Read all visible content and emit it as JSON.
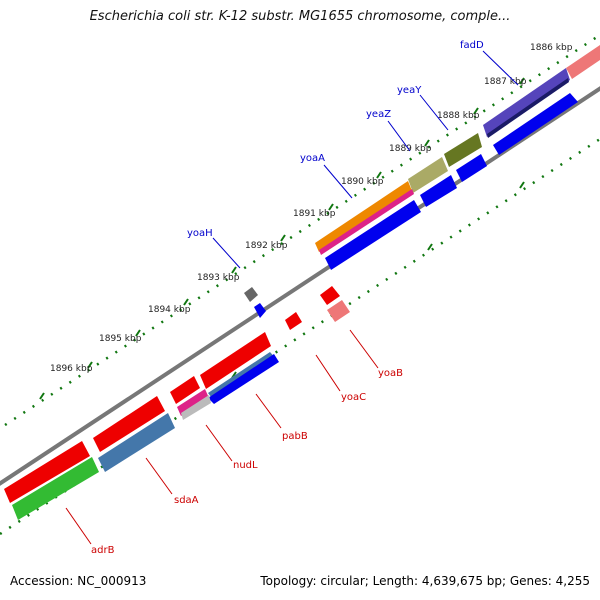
{
  "title": "Escherichia coli str. K-12 substr. MG1655 chromosome, comple...",
  "accession": "Accession: NC_000913",
  "topology": "Topology: circular; Length: 4,639,675 bp; Genes: 4,255",
  "kbp_ticks": [
    "1886 kbp",
    "1887 kbp",
    "1888 kbp",
    "1889 kbp",
    "1890 kbp",
    "1891 kbp",
    "1892 kbp",
    "1893 kbp",
    "1894 kbp",
    "1895 kbp",
    "1896 kbp"
  ],
  "genes_forward": [
    {
      "name": "fadD",
      "color": "#0000cc"
    },
    {
      "name": "yeaY",
      "color": "#0000cc"
    },
    {
      "name": "yeaZ",
      "color": "#0000cc"
    },
    {
      "name": "yoaA",
      "color": "#0000cc"
    },
    {
      "name": "yoaH",
      "color": "#0000cc"
    }
  ],
  "genes_reverse": [
    {
      "name": "yoaB",
      "color": "#cc0000"
    },
    {
      "name": "yoaC",
      "color": "#cc0000"
    },
    {
      "name": "pabB",
      "color": "#cc0000"
    },
    {
      "name": "nudL",
      "color": "#cc0000"
    },
    {
      "name": "sdaA",
      "color": "#cc0000"
    },
    {
      "name": "adrB",
      "color": "#cc0000"
    }
  ],
  "colors": {
    "backbone": "#888888",
    "ticks": "#117711",
    "blue": "#0000ee",
    "red": "#ee0000",
    "purple": "#5544bb",
    "olive": "#667722",
    "khaki": "#aaaa66",
    "orange": "#ee8800",
    "magenta": "#dd2288",
    "salmon": "#ee7777",
    "steel": "#4477aa",
    "green": "#33bb33",
    "gray": "#666666"
  }
}
